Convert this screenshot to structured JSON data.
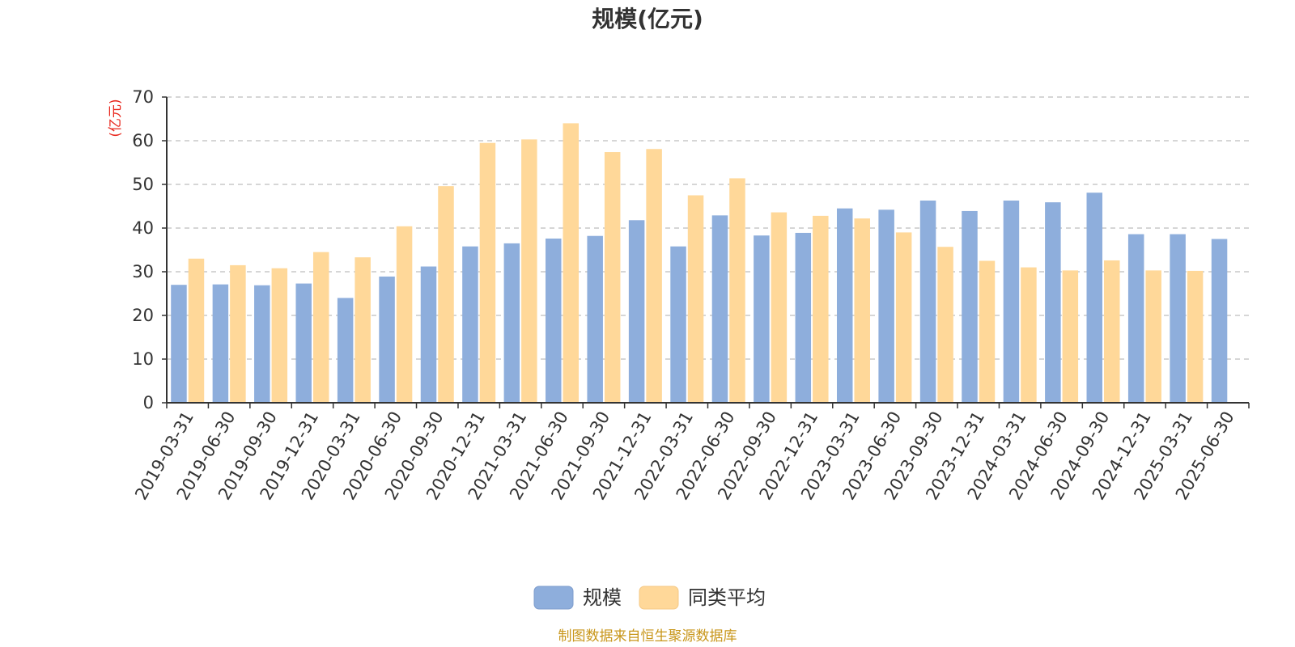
{
  "chart_data": {
    "type": "bar",
    "title": "规模(亿元)",
    "ylabel": "(亿元)",
    "ylim": [
      0,
      70
    ],
    "yticks": [
      0,
      10,
      20,
      30,
      40,
      50,
      60,
      70
    ],
    "grid": true,
    "legend_position": "bottom-center",
    "categories": [
      "2019-03-31",
      "2019-06-30",
      "2019-09-30",
      "2019-12-31",
      "2020-03-31",
      "2020-06-30",
      "2020-09-30",
      "2020-12-31",
      "2021-03-31",
      "2021-06-30",
      "2021-09-30",
      "2021-12-31",
      "2022-03-31",
      "2022-06-30",
      "2022-09-30",
      "2022-12-31",
      "2023-03-31",
      "2023-06-30",
      "2023-09-30",
      "2023-12-31",
      "2024-03-31",
      "2024-06-30",
      "2024-09-30",
      "2024-12-31",
      "2025-03-31",
      "2025-06-30"
    ],
    "series": [
      {
        "name": "规模",
        "color": "#8eaedc",
        "values": [
          27.0,
          27.1,
          26.9,
          27.3,
          24.0,
          28.9,
          31.2,
          35.8,
          36.5,
          37.6,
          38.2,
          41.8,
          35.8,
          42.9,
          38.3,
          38.9,
          44.5,
          44.2,
          46.3,
          43.9,
          46.3,
          45.9,
          48.1,
          38.6,
          38.6,
          37.5
        ]
      },
      {
        "name": "同类平均",
        "color": "#ffd899",
        "values": [
          33.0,
          31.5,
          30.8,
          34.5,
          33.3,
          40.4,
          49.6,
          59.5,
          60.3,
          64.0,
          57.4,
          58.1,
          47.5,
          51.4,
          43.6,
          42.8,
          42.2,
          39.0,
          35.7,
          32.5,
          31.0,
          30.3,
          32.6,
          30.3,
          30.2,
          null
        ]
      }
    ]
  },
  "source": "制图数据来自恒生聚源数据库"
}
